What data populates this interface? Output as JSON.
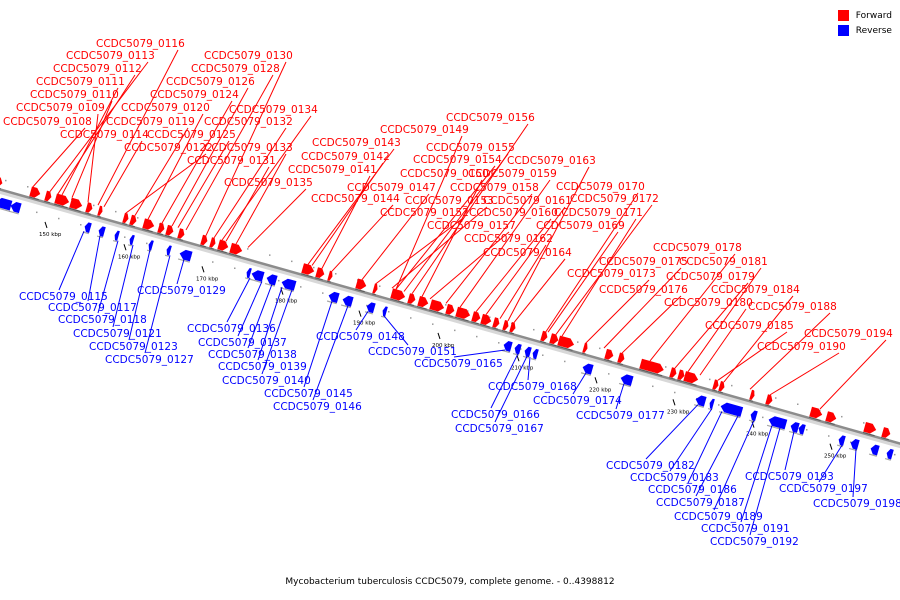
{
  "legend": {
    "forward_label": "Forward",
    "reverse_label": "Reverse",
    "forward_color": "#ff0000",
    "reverse_color": "#0000ff"
  },
  "caption": "Mycobacterium tuberculosis CCDC5079, complete genome. - 0..4398812",
  "axis": {
    "ticks_kbp": [
      150,
      160,
      170,
      180,
      190,
      200,
      210,
      220,
      230,
      240,
      250
    ],
    "unit": "kbp"
  },
  "forward_genes": [
    "CCDC5079_0116",
    "CCDC5079_0113",
    "CCDC5079_0112",
    "CCDC5079_0111",
    "CCDC5079_0110",
    "CCDC5079_0109",
    "CCDC5079_0108",
    "CCDC5079_0114",
    "CCDC5079_0130",
    "CCDC5079_0128",
    "CCDC5079_0126",
    "CCDC5079_0124",
    "CCDC5079_0120",
    "CCDC5079_0119",
    "CCDC5079_0125",
    "CCDC5079_0122",
    "CCDC5079_0134",
    "CCDC5079_0132",
    "CCDC5079_0133",
    "CCDC5079_0131",
    "CCDC5079_0135",
    "CCDC5079_0143",
    "CCDC5079_0142",
    "CCDC5079_0141",
    "CCDC5079_0144",
    "CCDC5079_0149",
    "CCDC5079_0147",
    "CCDC5079_0156",
    "CCDC5079_0155",
    "CCDC5079_0154",
    "CCDC5079_0150",
    "CCDC5079_0152",
    "CCDC5079_0153",
    "CCDC5079_0158",
    "CCDC5079_0159",
    "CCDC5079_0157",
    "CCDC5079_0160",
    "CCDC5079_0161",
    "CCDC5079_0162",
    "CCDC5079_0163",
    "CCDC5079_0164",
    "CCDC5079_0170",
    "CCDC5079_0172",
    "CCDC5079_0171",
    "CCDC5079_0169",
    "CCDC5079_0175",
    "CCDC5079_0173",
    "CCDC5079_0176",
    "CCDC5079_0178",
    "CCDC5079_0181",
    "CCDC5079_0179",
    "CCDC5079_0180",
    "CCDC5079_0184",
    "CCDC5079_0188",
    "CCDC5079_0185",
    "CCDC5079_0194",
    "CCDC5079_0190"
  ],
  "reverse_genes": [
    "CCDC5079_0115",
    "CCDC5079_0117",
    "CCDC5079_0118",
    "CCDC5079_0121",
    "CCDC5079_0123",
    "CCDC5079_0127",
    "CCDC5079_0129",
    "CCDC5079_0136",
    "CCDC5079_0137",
    "CCDC5079_0138",
    "CCDC5079_0139",
    "CCDC5079_0140",
    "CCDC5079_0145",
    "CCDC5079_0146",
    "CCDC5079_0148",
    "CCDC5079_0151",
    "CCDC5079_0165",
    "CCDC5079_0168",
    "CCDC5079_0174",
    "CCDC5079_0166",
    "CCDC5079_0167",
    "CCDC5079_0177",
    "CCDC5079_0182",
    "CCDC5079_0183",
    "CCDC5079_0186",
    "CCDC5079_0187",
    "CCDC5079_0189",
    "CCDC5079_0191",
    "CCDC5079_0192",
    "CCDC5079_0193",
    "CCDC5079_0197",
    "CCDC5079_0198"
  ]
}
